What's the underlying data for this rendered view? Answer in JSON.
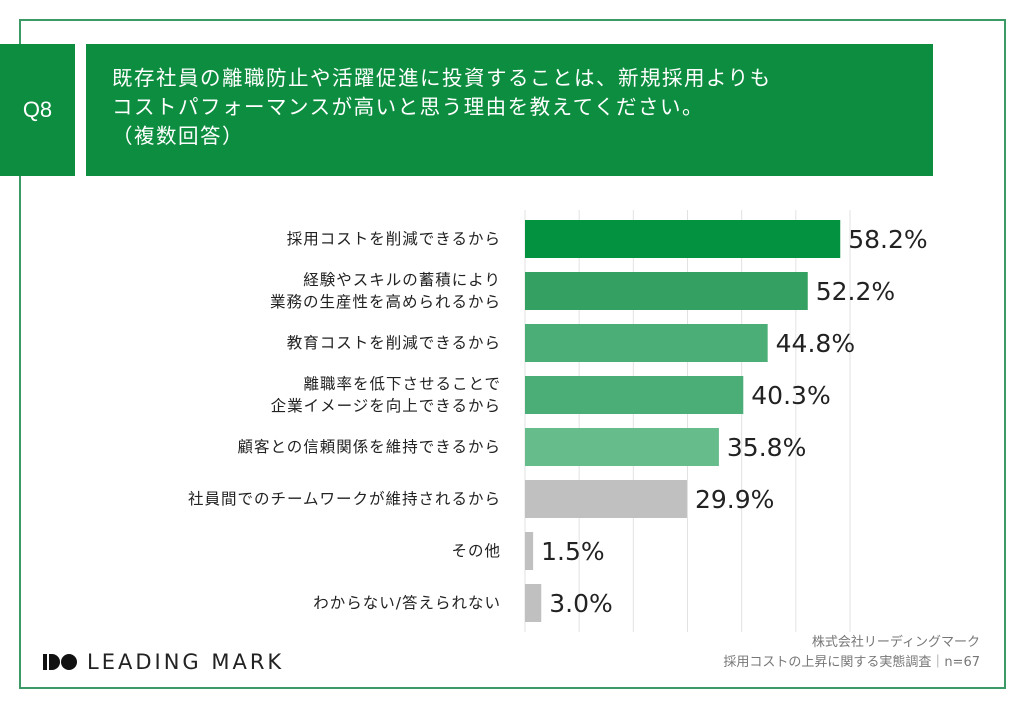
{
  "question": {
    "number": "Q8",
    "title_lines": [
      "既存社員の離職防止や活躍促進に投資することは、新規採用よりも",
      "コストパフォーマンスが高いと思う理由を教えてください。",
      "（複数回答）"
    ]
  },
  "chart_data": {
    "type": "bar",
    "orientation": "horizontal",
    "categories": [
      "採用コストを削減できるから",
      "経験やスキルの蓄積により\n業務の生産性を高められるから",
      "教育コストを削減できるから",
      "離職率を低下させることで\n企業イメージを向上できるから",
      "顧客との信頼関係を維持できるから",
      "社員間でのチームワークが維持されるから",
      "その他",
      "わからない/答えられない"
    ],
    "values": [
      58.2,
      52.2,
      44.8,
      40.3,
      35.8,
      29.9,
      1.5,
      3.0
    ],
    "data_labels": [
      "58.2%",
      "52.2%",
      "44.8%",
      "40.3%",
      "35.8%",
      "29.9%",
      "1.5%",
      "3.0%"
    ],
    "colors": [
      "#03923f",
      "#34a062",
      "#4aae76",
      "#4cae77",
      "#66bc8a",
      "#c0c0c0",
      "#c0c0c0",
      "#c0c0c0"
    ],
    "xlim": [
      0,
      60
    ],
    "grid": true,
    "grid_step": 10,
    "legend": "none"
  },
  "footer": {
    "logo_text": "LEADING MARK",
    "source_line1": "株式会社リーディングマーク",
    "source_line2": "採用コストの上昇に関する実態調査｜n=67"
  }
}
